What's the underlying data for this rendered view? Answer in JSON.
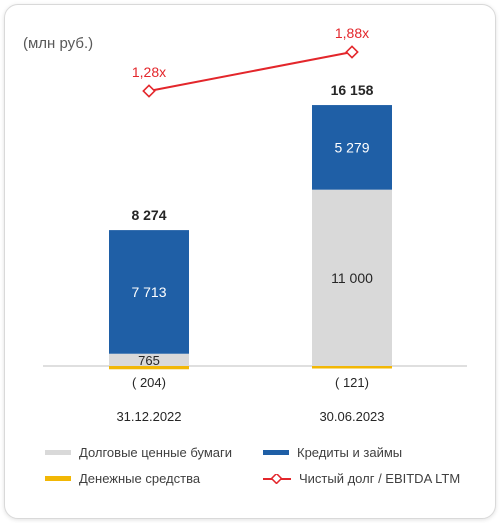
{
  "unit_label": "(млн руб.)",
  "chart_data": {
    "type": "bar",
    "categories": [
      "31.12.2022",
      "30.06.2023"
    ],
    "series": [
      {
        "name": "Долговые ценные бумаги",
        "color": "#d9d9d9",
        "values": [
          765,
          11000
        ],
        "labels": [
          "765",
          "11 000"
        ]
      },
      {
        "name": "Кредиты и займы",
        "color": "#1f5fa6",
        "values": [
          7713,
          5279
        ],
        "labels": [
          "7 713",
          "5 279"
        ]
      },
      {
        "name": "Денежные средства",
        "color": "#f2b705",
        "values": [
          -204,
          -121
        ],
        "labels": [
          "( 204)",
          "( 121)"
        ]
      }
    ],
    "totals": {
      "values": [
        8274,
        16158
      ],
      "labels": [
        "8 274",
        "16 158"
      ]
    },
    "line_series": {
      "name": "Чистый долг / EBITDA LTM",
      "color": "#e3262b",
      "values": [
        1.28,
        1.88
      ],
      "labels": [
        "1,28x",
        "1,88x"
      ]
    },
    "legend": [
      {
        "name": "Долговые ценные бумаги",
        "color": "#d9d9d9",
        "kind": "bar"
      },
      {
        "name": "Кредиты и займы",
        "color": "#1f5fa6",
        "kind": "bar"
      },
      {
        "name": "Денежные средства",
        "color": "#f2b705",
        "kind": "bar"
      },
      {
        "name": "Чистый долг / EBITDA LTM",
        "color": "#e3262b",
        "kind": "line"
      }
    ]
  }
}
